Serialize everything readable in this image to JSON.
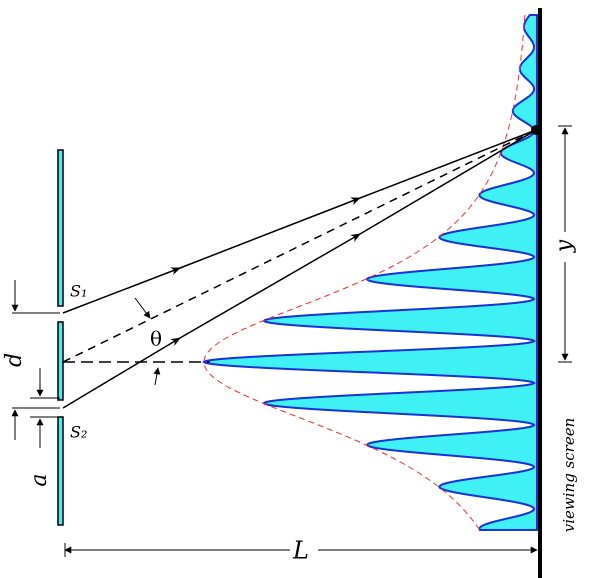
{
  "labels": {
    "s1": "S₁",
    "s2": "S₂",
    "d": "d",
    "a": "a",
    "theta": "θ",
    "y": "y",
    "L": "L",
    "screen": "viewing screen"
  }
}
